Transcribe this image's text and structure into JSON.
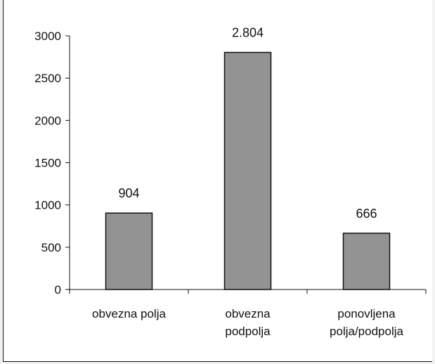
{
  "chart_data": {
    "type": "bar",
    "title": "",
    "xlabel": "",
    "ylabel": "",
    "categories": [
      [
        "obvezna polja"
      ],
      [
        "obvezna",
        "podpolja"
      ],
      [
        "ponovljena",
        "polja/podpolja"
      ]
    ],
    "values": [
      904,
      2804,
      666
    ],
    "data_labels": [
      "904",
      "2.804",
      "666"
    ],
    "ylim": [
      0,
      3000
    ],
    "yticks": [
      0,
      500,
      1000,
      1500,
      2000,
      2500,
      3000
    ],
    "ytick_labels": [
      "0",
      "500",
      "1000",
      "1500",
      "2000",
      "2500",
      "3000"
    ],
    "grid": false,
    "legend": "none",
    "colors": {
      "bar_fill": "#939393",
      "bar_stroke": "#111111",
      "axis": "#111111",
      "background": "#ffffff"
    }
  }
}
